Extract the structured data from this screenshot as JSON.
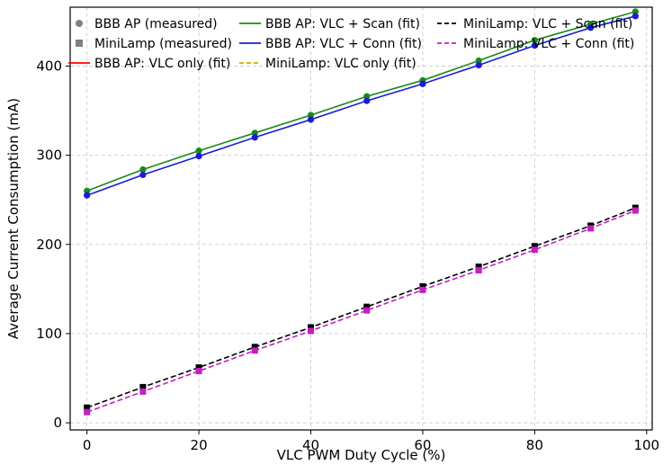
{
  "chart_data": {
    "type": "line",
    "xlabel": "VLC PWM Duty Cycle (%)",
    "ylabel": "Average Current Consumption (mA)",
    "xlim": [
      -3,
      101
    ],
    "ylim": [
      -8,
      466
    ],
    "xticks": [
      0,
      20,
      40,
      60,
      80,
      100
    ],
    "yticks": [
      0,
      100,
      200,
      300,
      400
    ],
    "grid": true,
    "legend_position": "top",
    "x": [
      0,
      10,
      20,
      30,
      40,
      50,
      60,
      70,
      80,
      90,
      98
    ],
    "series": [
      {
        "name": "BBB AP: VLC + Scan",
        "marker": "circle",
        "style": "solid",
        "color": "#1a8a1a",
        "values": [
          260,
          284,
          305,
          325,
          345,
          366,
          384,
          406,
          429,
          447,
          461
        ]
      },
      {
        "name": "BBB AP: VLC + Conn",
        "marker": "circle",
        "style": "solid",
        "color": "#1c1cd6",
        "values": [
          255,
          278,
          299,
          320,
          340,
          361,
          380,
          401,
          423,
          443,
          456
        ]
      },
      {
        "name": "MiniLamp: VLC + Scan",
        "marker": "square",
        "style": "dashed",
        "color": "#000000",
        "values": [
          17,
          40,
          62,
          85,
          107,
          130,
          153,
          175,
          198,
          221,
          241
        ]
      },
      {
        "name": "MiniLamp: VLC + Conn",
        "marker": "square",
        "style": "dashed",
        "color": "#c41fc4",
        "values": [
          12,
          35,
          58,
          81,
          103,
          126,
          149,
          171,
          194,
          218,
          238
        ]
      }
    ],
    "legend": [
      {
        "label": "BBB AP (measured)",
        "kind": "circle-marker",
        "color": "#808080"
      },
      {
        "label": "MiniLamp (measured)",
        "kind": "square-marker",
        "color": "#808080"
      },
      {
        "label": "BBB AP: VLC only (fit)",
        "kind": "solid-line",
        "color": "#ff0000"
      },
      {
        "label": "BBB AP: VLC + Scan (fit)",
        "kind": "solid-line",
        "color": "#1a8a1a"
      },
      {
        "label": "BBB AP: VLC + Conn (fit)",
        "kind": "solid-line",
        "color": "#1c1cd6"
      },
      {
        "label": "MiniLamp: VLC only (fit)",
        "kind": "dashed-line",
        "color": "#d4aa00"
      },
      {
        "label": "MiniLamp: VLC + Scan (fit)",
        "kind": "dashed-line",
        "color": "#000000"
      },
      {
        "label": "MiniLamp: VLC + Conn (fit)",
        "kind": "dashed-line",
        "color": "#c41fc4"
      }
    ]
  }
}
